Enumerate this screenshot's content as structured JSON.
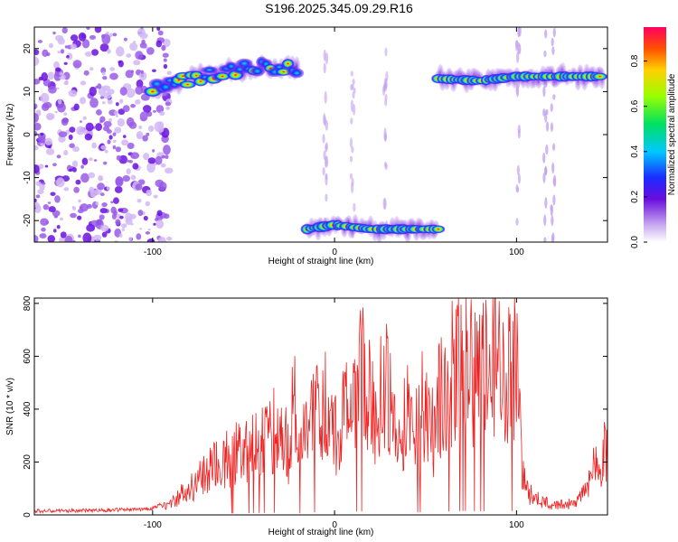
{
  "figure_title": "S196.2025.345.09.29.R16",
  "chart_data": [
    {
      "type": "heatmap",
      "title": "S196.2025.345.09.29.R16",
      "xlabel": "Height of straight line (km)",
      "ylabel": "Frequency (Hz)",
      "xlim": [
        -165,
        150
      ],
      "ylim": [
        -25,
        25
      ],
      "xticks": [
        -100,
        0,
        100
      ],
      "yticks": [
        -20,
        -10,
        0,
        10,
        20
      ],
      "colorbar": {
        "label": "Normalized spectral amplitude",
        "range": [
          0.0,
          0.95
        ],
        "ticks": [
          0.0,
          0.2,
          0.4,
          0.6,
          0.8
        ]
      },
      "features": [
        {
          "name": "broadband-noise",
          "x_range": [
            -165,
            -90
          ],
          "freq_range": [
            -25,
            25
          ],
          "amplitude": 0.15
        },
        {
          "name": "rising-band",
          "x": [
            -100,
            -80,
            -60,
            -40,
            -20
          ],
          "freq": [
            10.5,
            13,
            15,
            15.5,
            15.5
          ],
          "amplitude": 0.6
        },
        {
          "name": "negative-band",
          "x": [
            -15,
            0,
            20,
            40,
            57
          ],
          "freq": [
            -22,
            -21,
            -22,
            -22,
            -22
          ],
          "amplitude": 0.85
        },
        {
          "name": "positive-band",
          "x": [
            57,
            80,
            100,
            120,
            148
          ],
          "freq": [
            13,
            12.5,
            13.5,
            13.5,
            13.5
          ],
          "amplitude": 0.9
        }
      ]
    },
    {
      "type": "line",
      "xlabel": "Height of straight line (km)",
      "ylabel": "SNR (10 * v/v)",
      "xlim": [
        -165,
        150
      ],
      "ylim": [
        0,
        820
      ],
      "xticks": [
        -100,
        0,
        100
      ],
      "yticks": [
        0,
        200,
        400,
        600,
        800
      ],
      "series": [
        {
          "name": "SNR",
          "color": "#ee2222",
          "x": [
            -165,
            -150,
            -130,
            -110,
            -100,
            -95,
            -90,
            -85,
            -80,
            -75,
            -70,
            -65,
            -60,
            -55,
            -50,
            -45,
            -40,
            -35,
            -30,
            -25,
            -22,
            -20,
            -15,
            -10,
            -5,
            0,
            5,
            10,
            15,
            18,
            20,
            25,
            28,
            30,
            35,
            40,
            45,
            50,
            55,
            58,
            60,
            65,
            70,
            75,
            80,
            85,
            88,
            90,
            95,
            100,
            103,
            105,
            110,
            115,
            120,
            125,
            130,
            135,
            140,
            145,
            150
          ],
          "y": [
            15,
            15,
            18,
            20,
            25,
            40,
            60,
            90,
            130,
            170,
            200,
            240,
            260,
            300,
            320,
            350,
            380,
            400,
            420,
            300,
            700,
            250,
            420,
            500,
            520,
            400,
            480,
            600,
            660,
            650,
            500,
            550,
            680,
            600,
            300,
            520,
            450,
            560,
            350,
            600,
            630,
            700,
            740,
            720,
            680,
            720,
            750,
            740,
            700,
            760,
            260,
            120,
            80,
            60,
            50,
            50,
            60,
            80,
            180,
            250,
            340
          ]
        }
      ]
    }
  ]
}
